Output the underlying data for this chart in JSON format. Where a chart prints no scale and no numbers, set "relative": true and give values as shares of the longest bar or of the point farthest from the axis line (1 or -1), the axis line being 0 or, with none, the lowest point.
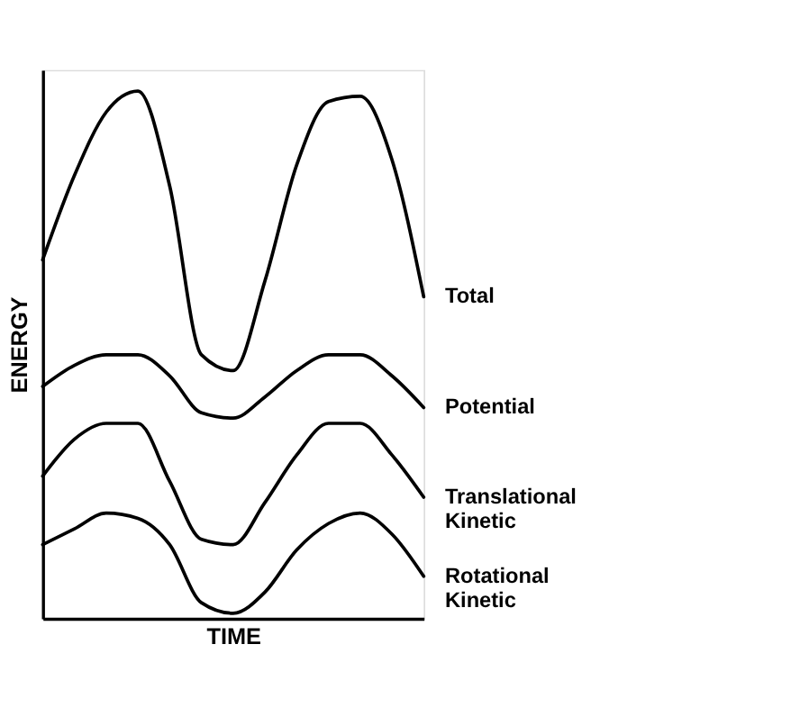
{
  "chart_data": {
    "type": "line",
    "relative": true,
    "xlabel": "TIME",
    "ylabel": "ENERGY",
    "tick_labels": false,
    "grid": false,
    "legend": false,
    "marker": "none",
    "line_style": "solid",
    "categories": [
      null,
      null,
      null,
      null,
      null,
      null,
      null,
      null,
      null,
      null,
      null,
      null,
      null
    ],
    "series": [
      {
        "name": "Total",
        "color": "#000000",
        "values": [
          0.68,
          0.84,
          0.96,
          1.0,
          0.82,
          0.5,
          0.47,
          0.64,
          0.86,
          0.98,
          0.99,
          0.87,
          0.61
        ]
      },
      {
        "name": "Potential",
        "color": "#000000",
        "values": [
          0.44,
          0.48,
          0.5,
          0.5,
          0.46,
          0.39,
          0.38,
          0.42,
          0.47,
          0.5,
          0.5,
          0.46,
          0.4
        ]
      },
      {
        "name": "Translational Kinetic",
        "color": "#000000",
        "values": [
          0.27,
          0.34,
          0.37,
          0.37,
          0.26,
          0.15,
          0.14,
          0.22,
          0.31,
          0.37,
          0.37,
          0.31,
          0.23
        ]
      },
      {
        "name": "Rotational Kinetic",
        "color": "#000000",
        "values": [
          0.14,
          0.17,
          0.2,
          0.19,
          0.14,
          0.03,
          0.01,
          0.05,
          0.13,
          0.18,
          0.2,
          0.16,
          0.08
        ]
      }
    ]
  }
}
